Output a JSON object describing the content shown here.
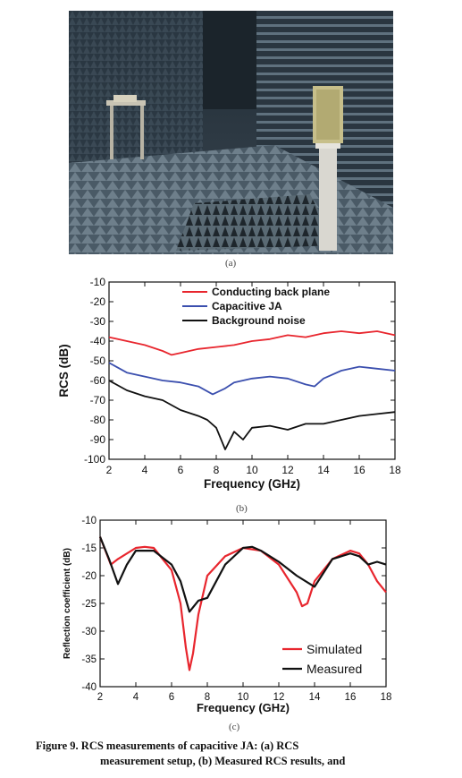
{
  "panels": {
    "a_label": "(a)",
    "b_label": "(b)",
    "c_label": "(c)"
  },
  "caption": {
    "line1": "Figure 9.  RCS measurements of capacitive JA: (a) RCS",
    "line2": "measurement setup, (b) Measured RCS results, and"
  },
  "colors": {
    "red": "#e8262e",
    "blue": "#3b4fae",
    "black": "#111111"
  },
  "chart_data": [
    {
      "type": "line",
      "xlabel": "Frequency (GHz)",
      "ylabel": "RCS (dB)",
      "xlim": [
        2,
        18
      ],
      "ylim": [
        -100,
        -10
      ],
      "xticks": [
        2,
        4,
        6,
        8,
        10,
        12,
        14,
        16,
        18
      ],
      "yticks": [
        -10,
        -20,
        -30,
        -40,
        -50,
        -60,
        -70,
        -80,
        -90,
        -100
      ],
      "grid": false,
      "legend": "top-center",
      "series": [
        {
          "name": "Conducting back plane",
          "color": "#e8262e",
          "x": [
            2,
            3,
            4,
            5,
            5.5,
            6,
            7,
            8,
            9,
            10,
            11,
            12,
            13,
            14,
            15,
            16,
            17,
            18
          ],
          "y": [
            -38,
            -40,
            -42,
            -45,
            -47,
            -46,
            -44,
            -43,
            -42,
            -40,
            -39,
            -37,
            -38,
            -36,
            -35,
            -36,
            -35,
            -37
          ]
        },
        {
          "name": "Capacitive JA",
          "color": "#3b4fae",
          "x": [
            2,
            3,
            4,
            5,
            6,
            7,
            7.8,
            8.5,
            9,
            10,
            11,
            12,
            13,
            13.5,
            14,
            15,
            16,
            17,
            18
          ],
          "y": [
            -51,
            -56,
            -58,
            -60,
            -61,
            -63,
            -67,
            -64,
            -61,
            -59,
            -58,
            -59,
            -62,
            -63,
            -59,
            -55,
            -53,
            -54,
            -55
          ]
        },
        {
          "name": "Background noise",
          "color": "#111111",
          "x": [
            2,
            3,
            4,
            5,
            6,
            7,
            7.5,
            8,
            8.5,
            9,
            9.5,
            10,
            11,
            12,
            13,
            14,
            15,
            16,
            17,
            18
          ],
          "y": [
            -60,
            -65,
            -68,
            -70,
            -75,
            -78,
            -80,
            -84,
            -95,
            -86,
            -90,
            -84,
            -83,
            -85,
            -82,
            -82,
            -80,
            -78,
            -77,
            -76
          ]
        }
      ]
    },
    {
      "type": "line",
      "xlabel": "Frequency (GHz)",
      "ylabel": "Reflection coefficient (dB)",
      "xlim": [
        2,
        18
      ],
      "ylim": [
        -40,
        -10
      ],
      "xticks": [
        2,
        4,
        6,
        8,
        10,
        12,
        14,
        16,
        18
      ],
      "yticks": [
        -10,
        -15,
        -20,
        -25,
        -30,
        -35,
        -40
      ],
      "grid": false,
      "legend": "bottom-right",
      "series": [
        {
          "name": "Simulated",
          "color": "#e8262e",
          "x": [
            2,
            2.6,
            3,
            4,
            4.5,
            5,
            6,
            6.5,
            6.8,
            7,
            7.2,
            7.5,
            8,
            9,
            10,
            11,
            12,
            13,
            13.3,
            13.6,
            14,
            15,
            16,
            16.5,
            17,
            17.5,
            18
          ],
          "y": [
            -13,
            -18,
            -17,
            -15,
            -14.8,
            -15,
            -19,
            -25,
            -33,
            -37,
            -34,
            -27,
            -20,
            -16.5,
            -15,
            -15.5,
            -18,
            -23,
            -25.5,
            -25,
            -21,
            -17,
            -15.5,
            -16,
            -18,
            -21,
            -23
          ]
        },
        {
          "name": "Measured",
          "color": "#111111",
          "x": [
            2,
            2.5,
            3,
            3.5,
            4,
            5,
            6,
            6.5,
            7,
            7.5,
            8,
            8.5,
            9,
            10,
            10.5,
            11,
            12,
            13,
            14,
            15,
            16,
            16.5,
            17,
            17.5,
            18
          ],
          "y": [
            -13,
            -17,
            -21.5,
            -18,
            -15.5,
            -15.5,
            -18,
            -21,
            -26.5,
            -24.5,
            -24,
            -21,
            -18,
            -15,
            -14.8,
            -15.5,
            -17.5,
            -20,
            -22,
            -17,
            -16,
            -16.5,
            -18,
            -17.5,
            -18
          ]
        }
      ]
    }
  ]
}
